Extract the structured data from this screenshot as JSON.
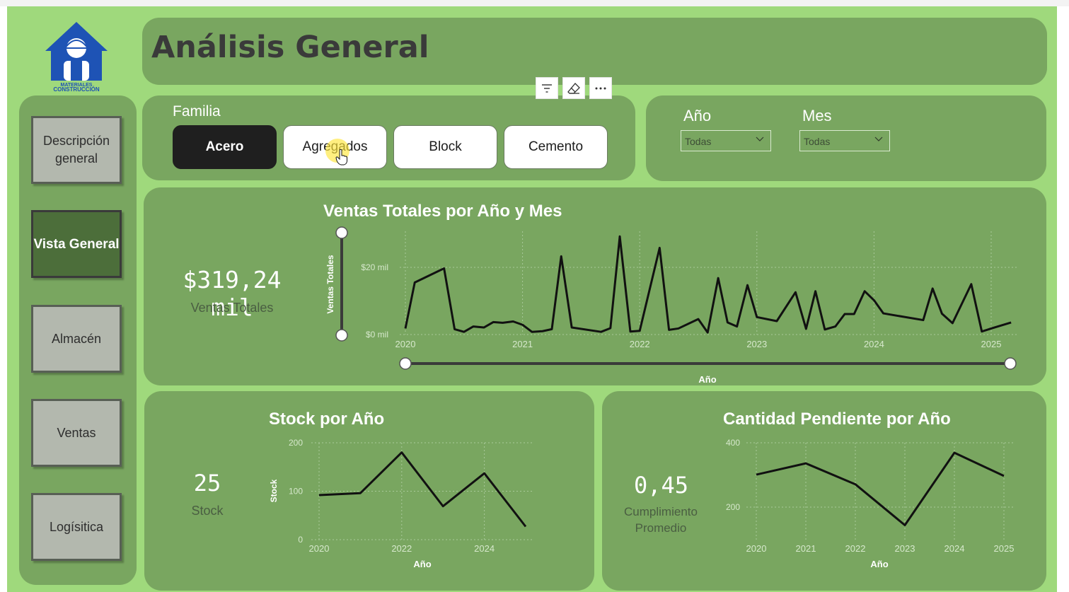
{
  "header": {
    "title": "Análisis General"
  },
  "logo": {
    "caption_line1": "MATERIALES",
    "caption_line2": "CONSTRUCCIÓN"
  },
  "nav": [
    {
      "label": "Descripción general",
      "active": false
    },
    {
      "label": "Vista General",
      "active": true
    },
    {
      "label": "Almacén",
      "active": false
    },
    {
      "label": "Ventas",
      "active": false
    },
    {
      "label": "Logísitica",
      "active": false
    }
  ],
  "filters": {
    "familia_label": "Familia",
    "familia_options": [
      "Acero",
      "Agregados",
      "Block",
      "Cemento"
    ],
    "familia_selected": "Acero",
    "anio_label": "Año",
    "anio_value": "Todas",
    "mes_label": "Mes",
    "mes_value": "Todas"
  },
  "toolbar": {
    "icons": [
      "filter-icon",
      "eraser-icon",
      "more-options-icon"
    ]
  },
  "kpis": {
    "ventas_value": "$319,24 mil",
    "ventas_label": "Ventas Totales",
    "stock_value": "25",
    "stock_label": "Stock",
    "cumplimiento_value": "0,45",
    "cumplimiento_label": "Cumplimiento Promedio"
  },
  "colors": {
    "canvas": "#9fd97c",
    "panel": "#79a660",
    "line": "#111111",
    "nav_active": "#4c6e3a",
    "chip_selected": "#1f1f1f"
  },
  "chart_data": [
    {
      "type": "line",
      "title": "Ventas Totales por Año y Mes",
      "xlabel": "Año",
      "ylabel": "Ventas Totales",
      "x_ticks": [
        "2020",
        "2021",
        "2022",
        "2023",
        "2024",
        "2025"
      ],
      "y_ticks": [
        "$0 mil",
        "$20 mil"
      ],
      "ylim": [
        -0.5,
        30
      ],
      "xlim": [
        2020,
        2025.18
      ],
      "grid": true,
      "series": [
        {
          "x": [
            2020.0,
            2020.08,
            2020.33,
            2020.42,
            2020.5,
            2020.58,
            2020.67,
            2020.75,
            2020.83,
            2020.92,
            2021.0,
            2021.08,
            2021.17,
            2021.25,
            2021.33,
            2021.42,
            2021.67,
            2021.75,
            2021.83,
            2021.92,
            2022.0,
            2022.17,
            2022.25,
            2022.33,
            2022.5,
            2022.58,
            2022.67,
            2022.75,
            2022.83,
            2022.92,
            2023.0,
            2023.17,
            2023.33,
            2023.42,
            2023.5,
            2023.58,
            2023.67,
            2023.75,
            2023.83,
            2023.92,
            2024.0,
            2024.08,
            2024.42,
            2024.5,
            2024.58,
            2024.67,
            2024.83,
            2024.92,
            2025.0,
            2025.17
          ],
          "y": [
            1.8,
            15.5,
            19.7,
            1.6,
            0.8,
            2.4,
            2.1,
            3.7,
            3.5,
            3.9,
            2.9,
            0.8,
            1.0,
            1.6,
            23.3,
            2.1,
            0.8,
            1.9,
            29.2,
            0.9,
            1.1,
            25.8,
            1.4,
            1.8,
            4.6,
            0.6,
            16.8,
            3.6,
            2.4,
            14.7,
            5.2,
            4.0,
            12.6,
            1.7,
            12.9,
            1.5,
            2.4,
            6.1,
            6.1,
            12.9,
            10.2,
            6.3,
            4.3,
            13.7,
            6.2,
            3.4,
            15.0,
            0.9,
            1.8,
            3.6
          ]
        }
      ]
    },
    {
      "type": "line",
      "title": "Stock por Año",
      "xlabel": "Año",
      "ylabel": "Stock",
      "x_ticks": [
        "2020",
        "2022",
        "2024"
      ],
      "y_ticks": [
        "0",
        "100",
        "200"
      ],
      "ylim": [
        0,
        200
      ],
      "grid": true,
      "series": [
        {
          "x": [
            2020,
            2021,
            2022,
            2023,
            2024,
            2025
          ],
          "y": [
            92,
            96,
            180,
            69,
            137,
            27
          ]
        }
      ]
    },
    {
      "type": "line",
      "title": "Cantidad Pendiente por Año",
      "xlabel": "Año",
      "ylabel": "",
      "x_ticks": [
        "2020",
        "2021",
        "2022",
        "2023",
        "2024",
        "2025"
      ],
      "y_ticks": [
        "200",
        "400"
      ],
      "ylim": [
        125,
        400
      ],
      "grid": true,
      "series": [
        {
          "x": [
            2020,
            2021,
            2022,
            2023,
            2024,
            2025
          ],
          "y": [
            301,
            336,
            271,
            144,
            369,
            297
          ]
        }
      ]
    }
  ]
}
